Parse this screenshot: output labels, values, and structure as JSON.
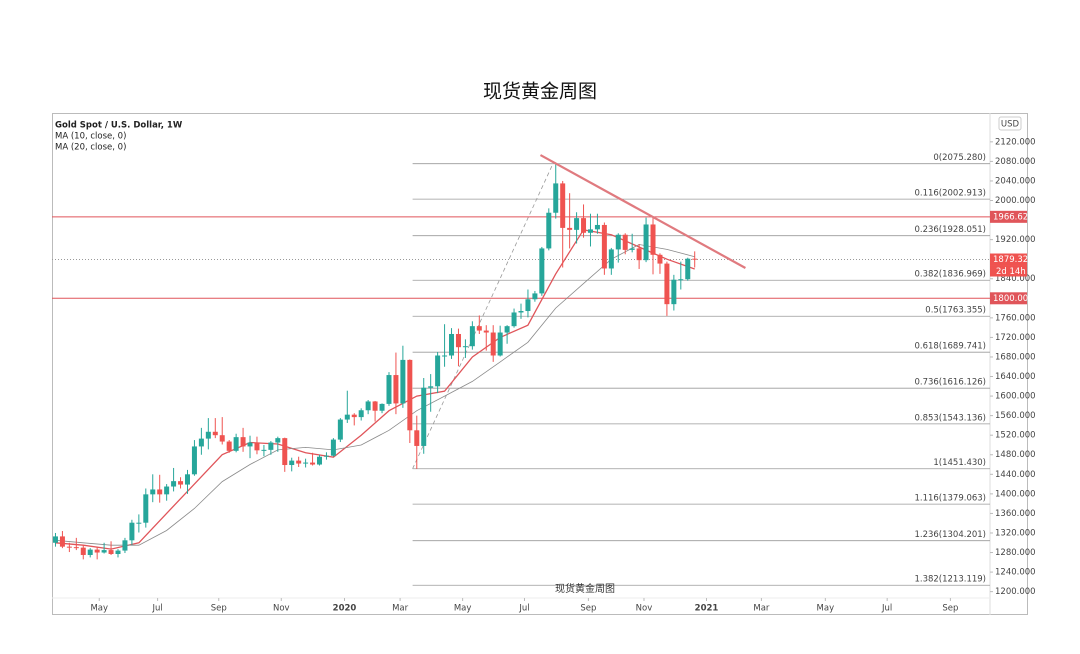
{
  "chart_data": {
    "type": "candlestick",
    "title": "现货黄金周图",
    "symbol_label": "Gold Spot / U.S. Dollar, 1W",
    "currency": "USD",
    "watermark": "现货黄金周图",
    "up_color": "#26a69a",
    "down_color": "#ef5350",
    "grid": false,
    "xlim": [
      -0.5,
      134.5
    ],
    "ylim": [
      1187,
      2179
    ],
    "x": [
      0,
      1,
      2,
      3,
      4,
      5,
      6,
      7,
      8,
      9,
      10,
      11,
      12,
      13,
      14,
      15,
      16,
      17,
      18,
      19,
      20,
      21,
      22,
      23,
      24,
      25,
      26,
      27,
      28,
      29,
      30,
      31,
      32,
      33,
      34,
      35,
      36,
      37,
      38,
      39,
      40,
      41,
      42,
      43,
      44,
      45,
      46,
      47,
      48,
      49,
      50,
      51,
      52,
      53,
      54,
      55,
      56,
      57,
      58,
      59,
      60,
      61,
      62,
      63,
      64,
      65,
      66,
      67,
      68,
      69,
      70,
      71,
      72,
      73,
      74,
      75,
      76,
      77,
      78,
      79,
      80,
      81,
      82,
      83,
      84,
      85,
      86,
      87,
      88,
      89,
      90,
      91,
      92
    ],
    "open": [
      1300,
      1313,
      1292,
      1291,
      1290,
      1275,
      1286,
      1280,
      1285,
      1277,
      1284,
      1305,
      1341,
      1341,
      1399,
      1409,
      1399,
      1415,
      1426,
      1419,
      1440,
      1497,
      1513,
      1527,
      1520,
      1507,
      1488,
      1516,
      1497,
      1505,
      1489,
      1490,
      1505,
      1514,
      1459,
      1468,
      1462,
      1464,
      1460,
      1476,
      1478,
      1511,
      1552,
      1562,
      1557,
      1571,
      1589,
      1570,
      1584,
      1643,
      1585,
      1674,
      1530,
      1498,
      1617,
      1620,
      1683,
      1683,
      1727,
      1700,
      1702,
      1743,
      1734,
      1730,
      1683,
      1730,
      1743,
      1771,
      1774,
      1798,
      1810,
      1902,
      1975,
      2035,
      1944,
      1940,
      1964,
      1934,
      1941,
      1950,
      1861,
      1900,
      1930,
      1899,
      1902,
      1878,
      1951,
      1889,
      1871,
      1788,
      1838,
      1839,
      1881
    ],
    "high": [
      1320,
      1324,
      1300,
      1310,
      1295,
      1289,
      1292,
      1300,
      1303,
      1287,
      1310,
      1347,
      1358,
      1411,
      1440,
      1439,
      1420,
      1453,
      1434,
      1449,
      1510,
      1535,
      1555,
      1555,
      1557,
      1510,
      1523,
      1535,
      1519,
      1517,
      1500,
      1508,
      1517,
      1515,
      1474,
      1476,
      1472,
      1484,
      1480,
      1485,
      1514,
      1555,
      1611,
      1565,
      1575,
      1592,
      1590,
      1585,
      1649,
      1689,
      1703,
      1675,
      1560,
      1637,
      1645,
      1690,
      1747,
      1739,
      1738,
      1716,
      1753,
      1765,
      1745,
      1745,
      1744,
      1745,
      1779,
      1789,
      1818,
      1815,
      1905,
      1984,
      2075,
      2040,
      2015,
      1976,
      1992,
      1973,
      1973,
      1955,
      1903,
      1933,
      1933,
      1932,
      1911,
      1965,
      1966,
      1892,
      1875,
      1848,
      1875,
      1883,
      1896
    ],
    "low": [
      1292,
      1289,
      1281,
      1285,
      1266,
      1270,
      1266,
      1278,
      1275,
      1270,
      1279,
      1295,
      1321,
      1331,
      1383,
      1382,
      1386,
      1405,
      1411,
      1400,
      1437,
      1480,
      1491,
      1514,
      1501,
      1484,
      1485,
      1486,
      1473,
      1481,
      1477,
      1480,
      1486,
      1445,
      1446,
      1455,
      1454,
      1458,
      1458,
      1470,
      1476,
      1506,
      1545,
      1540,
      1550,
      1563,
      1548,
      1565,
      1580,
      1563,
      1576,
      1504,
      1451,
      1482,
      1568,
      1606,
      1660,
      1676,
      1661,
      1678,
      1695,
      1727,
      1693,
      1670,
      1681,
      1707,
      1740,
      1758,
      1761,
      1793,
      1805,
      1898,
      1963,
      1863,
      1902,
      1912,
      1924,
      1906,
      1932,
      1848,
      1848,
      1873,
      1890,
      1894,
      1860,
      1874,
      1849,
      1850,
      1764,
      1775,
      1818,
      1836,
      1863
    ],
    "close": [
      1313,
      1292,
      1291,
      1290,
      1275,
      1286,
      1280,
      1285,
      1277,
      1284,
      1305,
      1341,
      1341,
      1399,
      1409,
      1399,
      1415,
      1426,
      1419,
      1440,
      1497,
      1513,
      1527,
      1520,
      1507,
      1488,
      1516,
      1497,
      1505,
      1489,
      1490,
      1505,
      1514,
      1459,
      1468,
      1462,
      1464,
      1460,
      1476,
      1478,
      1511,
      1552,
      1562,
      1557,
      1571,
      1589,
      1570,
      1584,
      1643,
      1585,
      1674,
      1530,
      1498,
      1617,
      1620,
      1683,
      1683,
      1727,
      1700,
      1702,
      1743,
      1734,
      1730,
      1683,
      1730,
      1743,
      1771,
      1774,
      1798,
      1810,
      1902,
      1975,
      2035,
      1944,
      1940,
      1964,
      1934,
      1941,
      1950,
      1861,
      1900,
      1930,
      1899,
      1902,
      1878,
      1951,
      1889,
      1871,
      1788,
      1838,
      1839,
      1881,
      1879
    ],
    "series": [
      {
        "name": "MA (10, close, 0)",
        "color": "#e0555a",
        "x": [
          0,
          4,
          8,
          12,
          16,
          20,
          24,
          28,
          32,
          36,
          40,
          44,
          48,
          52,
          56,
          60,
          64,
          68,
          72,
          76,
          80,
          84,
          88,
          92
        ],
        "values": [
          1300,
          1295,
          1287,
          1300,
          1360,
          1420,
          1480,
          1505,
          1502,
          1484,
          1475,
          1520,
          1570,
          1600,
          1610,
          1680,
          1720,
          1745,
          1850,
          1940,
          1930,
          1905,
          1880,
          1860
        ]
      },
      {
        "name": "MA (20, close, 0)",
        "color": "#8a8a8a",
        "x": [
          0,
          4,
          8,
          12,
          16,
          20,
          24,
          28,
          32,
          36,
          40,
          44,
          48,
          52,
          56,
          60,
          64,
          68,
          72,
          76,
          80,
          84,
          88,
          92
        ],
        "values": [
          1305,
          1300,
          1295,
          1295,
          1325,
          1370,
          1425,
          1460,
          1490,
          1495,
          1490,
          1500,
          1530,
          1570,
          1600,
          1630,
          1670,
          1710,
          1780,
          1830,
          1880,
          1910,
          1900,
          1885
        ]
      }
    ],
    "fib_from": {
      "x": 51.4,
      "y": 1451.43
    },
    "fib_to": {
      "x": 71.6,
      "y": 2075.28
    },
    "fib_levels": [
      {
        "value": 2075.28,
        "label": "0(2075.280)"
      },
      {
        "value": 2002.913,
        "label": "0.116(2002.913)"
      },
      {
        "value": 1928.051,
        "label": "0.236(1928.051)"
      },
      {
        "value": 1836.969,
        "label": "0.382(1836.969)"
      },
      {
        "value": 1763.355,
        "label": "0.5(1763.355)"
      },
      {
        "value": 1689.741,
        "label": "0.618(1689.741)"
      },
      {
        "value": 1616.126,
        "label": "0.736(1616.126)"
      },
      {
        "value": 1543.136,
        "label": "0.853(1543.136)"
      },
      {
        "value": 1451.43,
        "label": "1(1451.430)"
      },
      {
        "value": 1379.063,
        "label": "1.116(1379.063)"
      },
      {
        "value": 1304.201,
        "label": "1.236(1304.201)"
      },
      {
        "value": 1213.119,
        "label": "1.382(1213.119)"
      }
    ],
    "hlines": [
      {
        "value": 1966.623,
        "label": "1966.623",
        "color": "#e0555a"
      },
      {
        "value": 1800,
        "label": "1800.000",
        "color": "#e0555a"
      }
    ],
    "last_price": {
      "value": 1879.322,
      "label": "1879.322",
      "countdown": "2d 14h",
      "color": "#ef5350"
    },
    "trendline": {
      "x": [
        69.8,
        99.3
      ],
      "y": [
        2093,
        1862
      ],
      "color": "#e07a7f"
    },
    "yticks": [
      {
        "value": 2120,
        "label": "2120.000"
      },
      {
        "value": 2080,
        "label": "2080.000"
      },
      {
        "value": 2040,
        "label": "2040.000"
      },
      {
        "value": 2000,
        "label": "2000.000"
      },
      {
        "value": 1920,
        "label": "1920.000"
      },
      {
        "value": 1840,
        "label": "1840.000"
      },
      {
        "value": 1760,
        "label": "1760.000"
      },
      {
        "value": 1720,
        "label": "1720.000"
      },
      {
        "value": 1680,
        "label": "1680.000"
      },
      {
        "value": 1640,
        "label": "1640.000"
      },
      {
        "value": 1600,
        "label": "1600.000"
      },
      {
        "value": 1560,
        "label": "1560.000"
      },
      {
        "value": 1520,
        "label": "1520.000"
      },
      {
        "value": 1480,
        "label": "1480.000"
      },
      {
        "value": 1440,
        "label": "1440.000"
      },
      {
        "value": 1400,
        "label": "1400.000"
      },
      {
        "value": 1360,
        "label": "1360.000"
      },
      {
        "value": 1320,
        "label": "1320.000"
      },
      {
        "value": 1280,
        "label": "1280.000"
      },
      {
        "value": 1240,
        "label": "1240.000"
      },
      {
        "value": 1200,
        "label": "1200.000"
      }
    ],
    "xticks": [
      {
        "value": 6.3,
        "label": "May"
      },
      {
        "value": 14.7,
        "label": "Jul"
      },
      {
        "value": 23.5,
        "label": "Sep"
      },
      {
        "value": 32.5,
        "label": "Nov"
      },
      {
        "value": 41.6,
        "label": "2020"
      },
      {
        "value": 49.6,
        "label": "Mar"
      },
      {
        "value": 58.6,
        "label": "May"
      },
      {
        "value": 67.5,
        "label": "Jul"
      },
      {
        "value": 76.7,
        "label": "Sep"
      },
      {
        "value": 84.7,
        "label": "Nov"
      },
      {
        "value": 93.7,
        "label": "2021"
      },
      {
        "value": 101.6,
        "label": "Mar"
      },
      {
        "value": 110.8,
        "label": "May"
      },
      {
        "value": 119.7,
        "label": "Jul"
      },
      {
        "value": 128.8,
        "label": "Sep"
      }
    ]
  }
}
